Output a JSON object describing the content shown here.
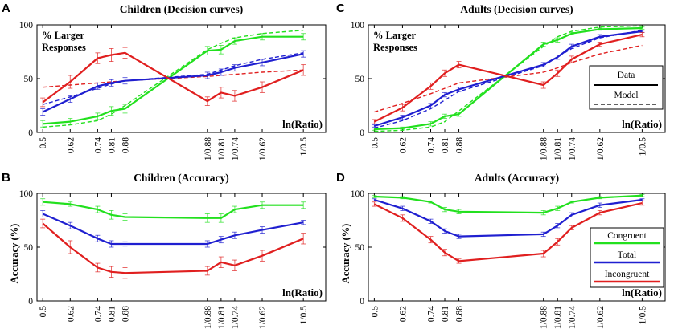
{
  "colors": {
    "congruent": "#22e01e",
    "total": "#1f1fd0",
    "incongruent": "#e01f1f"
  },
  "chart_data": [
    {
      "panel": "A",
      "type": "line",
      "title": "Children (Decision curves)",
      "ylabel": "% Larger Responses",
      "ylabel_lines": [
        "% Larger",
        "Responses"
      ],
      "xlabel": "ln(Ratio)",
      "ylim": [
        0,
        100
      ],
      "yticks": [
        0,
        50,
        100
      ],
      "x_positions": [
        0.0,
        0.1,
        0.2,
        0.25,
        0.3,
        0.6,
        0.65,
        0.7,
        0.8,
        0.95
      ],
      "categories": [
        "0.5",
        "0.62",
        "0.74",
        "0.81",
        "0.88",
        "1/0.88",
        "1/0.81",
        "1/0.74",
        "1/0.62",
        "1/0.5"
      ],
      "series": [
        {
          "name": "Congruent",
          "color_key": "congruent",
          "values": [
            8,
            10,
            15,
            20,
            22,
            76,
            77,
            85,
            89,
            89
          ],
          "errors": [
            3,
            3,
            3,
            4,
            4,
            4,
            4,
            3,
            3,
            3
          ]
        },
        {
          "name": "Total",
          "color_key": "total",
          "values": [
            19,
            31,
            43,
            46,
            48,
            53,
            56,
            60,
            65,
            73
          ],
          "errors": [
            3,
            3,
            3,
            3,
            3,
            3,
            3,
            3,
            3,
            3
          ]
        },
        {
          "name": "Incongruent",
          "color_key": "incongruent",
          "values": [
            28,
            47,
            69,
            72,
            74,
            29,
            37,
            34,
            42,
            58
          ],
          "errors": [
            4,
            6,
            5,
            6,
            5,
            4,
            5,
            5,
            5,
            5
          ]
        }
      ],
      "model_series": [
        {
          "name": "Congruent model",
          "color_key": "congruent",
          "values": [
            5,
            7,
            11,
            17,
            25,
            77,
            83,
            88,
            92,
            95
          ]
        },
        {
          "name": "Total model",
          "color_key": "total",
          "values": [
            26,
            33,
            41,
            45,
            48,
            54,
            58,
            62,
            68,
            74
          ]
        },
        {
          "name": "Incongruent model",
          "color_key": "incongruent",
          "values": [
            42,
            44,
            46,
            47,
            48,
            52,
            53,
            54,
            56,
            58
          ]
        }
      ]
    },
    {
      "panel": "C",
      "type": "line",
      "title": "Adults (Decision curves)",
      "ylabel": "% Larger Responses",
      "ylabel_lines": [
        "% Larger",
        "Responses"
      ],
      "xlabel": "ln(Ratio)",
      "ylim": [
        0,
        100
      ],
      "yticks": [
        0,
        50,
        100
      ],
      "x_positions": [
        0.0,
        0.1,
        0.2,
        0.25,
        0.3,
        0.6,
        0.65,
        0.7,
        0.8,
        0.95
      ],
      "categories": [
        "0.5",
        "0.62",
        "0.74",
        "0.81",
        "0.88",
        "1/0.88",
        "1/0.81",
        "1/0.74",
        "1/0.62",
        "1/0.5"
      ],
      "legend": {
        "entries": [
          "Data",
          "Model"
        ],
        "location": "right"
      },
      "series": [
        {
          "name": "Congruent",
          "color_key": "congruent",
          "values": [
            3,
            4,
            8,
            15,
            17,
            82,
            86,
            92,
            96,
            97
          ],
          "errors": [
            1,
            1,
            2,
            2,
            2,
            2,
            2,
            1,
            1,
            1
          ]
        },
        {
          "name": "Total",
          "color_key": "total",
          "values": [
            6,
            14,
            25,
            35,
            40,
            63,
            70,
            80,
            89,
            94
          ],
          "errors": [
            1,
            2,
            2,
            2,
            2,
            2,
            2,
            2,
            2,
            1
          ]
        },
        {
          "name": "Incongruent",
          "color_key": "incongruent",
          "values": [
            10,
            23,
            43,
            55,
            63,
            44,
            55,
            68,
            82,
            91
          ],
          "errors": [
            2,
            3,
            3,
            3,
            3,
            3,
            3,
            3,
            2,
            2
          ]
        }
      ],
      "model_series": [
        {
          "name": "Congruent model",
          "color_key": "congruent",
          "values": [
            1,
            2,
            5,
            10,
            20,
            80,
            89,
            94,
            98,
            99
          ]
        },
        {
          "name": "Total model",
          "color_key": "total",
          "values": [
            4,
            11,
            22,
            30,
            38,
            62,
            70,
            78,
            88,
            95
          ]
        },
        {
          "name": "Incongruent model",
          "color_key": "incongruent",
          "values": [
            19,
            27,
            36,
            41,
            46,
            56,
            60,
            65,
            73,
            81
          ]
        }
      ]
    },
    {
      "panel": "B",
      "type": "line",
      "title": "Children (Accuracy)",
      "ylabel": "Accuracy (%)",
      "ylabel_lines": [
        "Accuracy (%)"
      ],
      "xlabel": "ln(Ratio)",
      "ylim": [
        0,
        100
      ],
      "yticks": [
        0,
        50,
        100
      ],
      "x_positions": [
        0.0,
        0.1,
        0.2,
        0.25,
        0.3,
        0.6,
        0.65,
        0.7,
        0.8,
        0.95
      ],
      "categories": [
        "0.5",
        "0.62",
        "0.74",
        "0.81",
        "0.88",
        "1/0.88",
        "1/0.81",
        "1/0.74",
        "1/0.62",
        "1/0.5"
      ],
      "series": [
        {
          "name": "Congruent",
          "color_key": "congruent",
          "values": [
            92,
            90,
            85,
            80,
            78,
            77,
            77,
            85,
            89,
            89
          ],
          "errors": [
            3,
            2,
            3,
            4,
            3,
            4,
            4,
            3,
            3,
            3
          ]
        },
        {
          "name": "Total",
          "color_key": "total",
          "values": [
            81,
            70,
            58,
            53,
            53,
            53,
            57,
            61,
            66,
            73
          ],
          "errors": [
            3,
            3,
            3,
            3,
            2,
            3,
            3,
            3,
            3,
            2
          ]
        },
        {
          "name": "Incongruent",
          "color_key": "incongruent",
          "values": [
            72,
            50,
            31,
            27,
            26,
            28,
            36,
            33,
            42,
            58
          ],
          "errors": [
            4,
            6,
            4,
            5,
            5,
            4,
            5,
            5,
            5,
            5
          ]
        }
      ]
    },
    {
      "panel": "D",
      "type": "line",
      "title": "Adults (Accuracy)",
      "ylabel": "Accuracy (%)",
      "ylabel_lines": [
        "Accuracy (%)"
      ],
      "xlabel": "ln(Ratio)",
      "ylim": [
        0,
        100
      ],
      "yticks": [
        0,
        50,
        100
      ],
      "x_positions": [
        0.0,
        0.1,
        0.2,
        0.25,
        0.3,
        0.6,
        0.65,
        0.7,
        0.8,
        0.95
      ],
      "categories": [
        "0.5",
        "0.62",
        "0.74",
        "0.81",
        "0.88",
        "1/0.88",
        "1/0.81",
        "1/0.74",
        "1/0.62",
        "1/0.5"
      ],
      "legend": {
        "entries": [
          "Congruent",
          "Total",
          "Incongruent"
        ],
        "location": "right"
      },
      "series": [
        {
          "name": "Congruent",
          "color_key": "congruent",
          "values": [
            97,
            96,
            92,
            85,
            83,
            82,
            86,
            92,
            96,
            98
          ],
          "errors": [
            1,
            1,
            1,
            2,
            2,
            2,
            2,
            1,
            1,
            1
          ]
        },
        {
          "name": "Total",
          "color_key": "total",
          "values": [
            94,
            86,
            74,
            65,
            60,
            62,
            70,
            80,
            89,
            94
          ],
          "errors": [
            1,
            2,
            2,
            2,
            2,
            2,
            2,
            2,
            2,
            1
          ]
        },
        {
          "name": "Incongruent",
          "color_key": "incongruent",
          "values": [
            90,
            77,
            57,
            45,
            37,
            44,
            55,
            68,
            82,
            91
          ],
          "errors": [
            2,
            3,
            3,
            3,
            2,
            3,
            3,
            2,
            2,
            2
          ]
        }
      ]
    }
  ]
}
